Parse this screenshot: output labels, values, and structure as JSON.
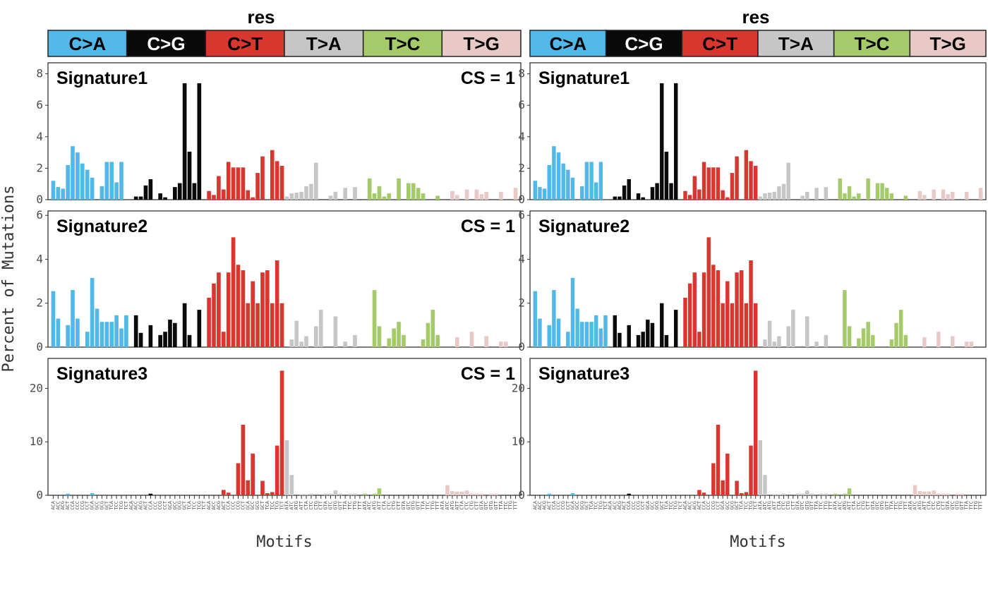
{
  "panel_titles": [
    "res",
    "res"
  ],
  "ylabel": "Percent of Mutations",
  "xlabel": "Motifs",
  "colors": {
    "C>A": "#52b8e8",
    "C>G": "#0a0a0a",
    "C>T": "#d8372f",
    "T>A": "#c6c6c6",
    "T>C": "#a4ca6a",
    "T>G": "#e8c9c6"
  },
  "cs_text": "CS = 1",
  "chart_data": {
    "type": "bar",
    "mutation_types": [
      "C>A",
      "C>G",
      "C>T",
      "T>A",
      "T>C",
      "T>G"
    ],
    "motif_labels": [
      "ACA",
      "ACC",
      "ACG",
      "ACT",
      "CCA",
      "CCC",
      "CCG",
      "CCT",
      "GCA",
      "GCC",
      "GCG",
      "GCT",
      "TCA",
      "TCC",
      "TCG",
      "TCT",
      "ACA",
      "ACC",
      "ACG",
      "ACT",
      "CCA",
      "CCC",
      "CCG",
      "CCT",
      "GCA",
      "GCC",
      "GCG",
      "GCT",
      "TCA",
      "TCC",
      "TCG",
      "TCT",
      "ACA",
      "ACC",
      "ACG",
      "ACT",
      "CCA",
      "CCC",
      "CCG",
      "CCT",
      "GCA",
      "GCC",
      "GCG",
      "GCT",
      "TCA",
      "TCC",
      "TCG",
      "TCT",
      "ATA",
      "ATC",
      "ATG",
      "ATT",
      "CTA",
      "CTC",
      "CTG",
      "CTT",
      "GTA",
      "GTC",
      "GTG",
      "GTT",
      "TTA",
      "TTC",
      "TTG",
      "TTT",
      "ATA",
      "ATC",
      "ATG",
      "ATT",
      "CTA",
      "CTC",
      "CTG",
      "CTT",
      "GTA",
      "GTC",
      "GTG",
      "GTT",
      "TTA",
      "TTC",
      "TTG",
      "TTT",
      "ATA",
      "ATC",
      "ATG",
      "ATT",
      "CTA",
      "CTC",
      "CTG",
      "CTT",
      "GTA",
      "GTC",
      "GTG",
      "GTT",
      "TTA",
      "TTC",
      "TTG",
      "TTT"
    ],
    "signatures": [
      {
        "name": "Signature1",
        "show_cs": [
          true,
          false
        ],
        "ylim": [
          0,
          8.7
        ],
        "yticks": [
          0,
          2,
          4,
          6,
          8
        ],
        "values": [
          1.2,
          0.8,
          0.7,
          2.2,
          3.4,
          3.0,
          2.3,
          1.9,
          1.4,
          0.0,
          0.85,
          2.4,
          2.4,
          1.1,
          2.4,
          0.0,
          0.0,
          0.2,
          0.2,
          0.9,
          1.3,
          0.0,
          0.4,
          0.15,
          0.0,
          0.8,
          1.05,
          7.4,
          3.05,
          1.05,
          7.4,
          0.0,
          0.55,
          0.3,
          1.5,
          0.65,
          2.4,
          2.05,
          2.05,
          2.05,
          0.6,
          0.15,
          1.7,
          2.75,
          0.0,
          3.15,
          2.45,
          2.15,
          0.2,
          0.4,
          0.45,
          0.5,
          0.85,
          1.0,
          2.35,
          0.0,
          0.0,
          0.25,
          0.5,
          0.0,
          0.75,
          0.0,
          0.8,
          0.0,
          0.0,
          1.35,
          0.4,
          0.85,
          0.2,
          0.4,
          0.0,
          1.35,
          0.0,
          1.05,
          1.05,
          0.75,
          0.4,
          0.0,
          0.0,
          0.25,
          0.0,
          0.0,
          0.55,
          0.3,
          0.0,
          0.65,
          0.0,
          0.65,
          0.35,
          0.5,
          0.0,
          0.0,
          0.5,
          0.0,
          0.0,
          0.75
        ]
      },
      {
        "name": "Signature2",
        "show_cs": [
          true,
          false
        ],
        "ylim": [
          0,
          6.2
        ],
        "yticks": [
          0,
          2,
          4,
          6
        ],
        "values": [
          2.55,
          1.3,
          0.0,
          1.0,
          2.6,
          1.3,
          0.0,
          0.7,
          3.15,
          1.75,
          1.15,
          1.15,
          1.15,
          1.45,
          0.85,
          1.45,
          0.0,
          1.45,
          0.65,
          0.0,
          1.0,
          0.0,
          0.55,
          0.7,
          1.25,
          1.1,
          0.0,
          2.0,
          0.55,
          0.0,
          1.7,
          0.0,
          2.25,
          2.9,
          3.4,
          0.7,
          3.4,
          5.0,
          3.75,
          3.5,
          2.0,
          3.0,
          2.0,
          3.4,
          3.5,
          2.0,
          3.95,
          2.0,
          0.0,
          0.35,
          1.2,
          0.25,
          0.5,
          0.0,
          0.95,
          1.7,
          0.0,
          0.0,
          1.4,
          0.0,
          0.25,
          0.0,
          0.55,
          0.0,
          0.0,
          0.0,
          2.6,
          0.95,
          0.0,
          0.4,
          0.85,
          1.15,
          0.55,
          0.0,
          0.0,
          0.0,
          0.35,
          1.1,
          1.7,
          0.55,
          0.0,
          0.0,
          0.0,
          0.45,
          0.0,
          0.0,
          0.7,
          0.0,
          0.0,
          0.5,
          0.0,
          0.0,
          0.25,
          0.25,
          0.0,
          0.0
        ]
      },
      {
        "name": "Signature3",
        "show_cs": [
          true,
          false
        ],
        "ylim": [
          0,
          25.6
        ],
        "yticks": [
          0,
          10,
          20
        ],
        "values": [
          0.0,
          0.0,
          0.0,
          0.3,
          0.0,
          0.0,
          0.0,
          0.0,
          0.4,
          0.0,
          0.0,
          0.0,
          0.0,
          0.0,
          0.0,
          0.0,
          0.0,
          0.0,
          0.0,
          0.0,
          0.3,
          0.0,
          0.0,
          0.0,
          0.0,
          0.0,
          0.0,
          0.0,
          0.0,
          0.0,
          0.0,
          0.0,
          0.0,
          0.0,
          0.0,
          1.0,
          0.5,
          0.0,
          6.0,
          13.2,
          2.8,
          7.8,
          0.0,
          2.7,
          0.4,
          0.6,
          9.3,
          23.3,
          10.3,
          3.8,
          0.0,
          0.2,
          0.2,
          0.3,
          0.0,
          0.0,
          0.3,
          0.3,
          0.9,
          0.3,
          0.0,
          0.3,
          0.3,
          0.0,
          0.3,
          0.0,
          0.3,
          1.3,
          0.0,
          0.0,
          0.0,
          0.0,
          0.0,
          0.0,
          0.0,
          0.0,
          0.0,
          0.0,
          0.0,
          0.0,
          0.0,
          1.9,
          0.8,
          0.7,
          0.7,
          0.9,
          0.3,
          0.3,
          0.3,
          0.0,
          0.3,
          0.3,
          0.0,
          0.0,
          0.0,
          0.0
        ]
      }
    ]
  }
}
